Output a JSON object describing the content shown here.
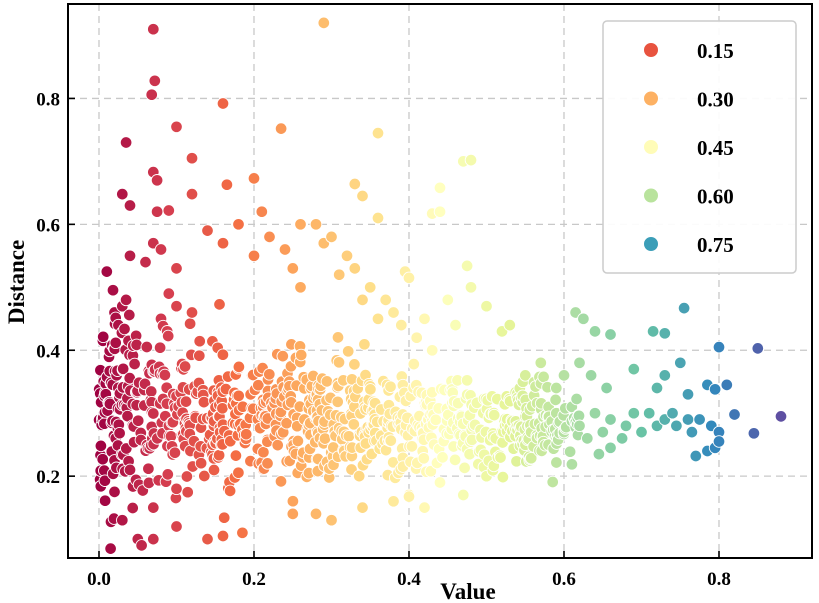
{
  "chart_data": {
    "type": "scatter",
    "title": "",
    "xlabel": "Value",
    "ylabel": "Distance",
    "xlim": [
      -0.04,
      0.92
    ],
    "ylim": [
      0.07,
      0.95
    ],
    "xticks": [
      0.0,
      0.2,
      0.4,
      0.6,
      0.8
    ],
    "xtick_labels": [
      "0.0",
      "0.2",
      "0.4",
      "0.6",
      "0.8"
    ],
    "yticks": [
      0.2,
      0.4,
      0.6,
      0.8
    ],
    "ytick_labels": [
      "0.2",
      "0.4",
      "0.6",
      "0.8"
    ],
    "grid": true,
    "colormap": "Spectral_r",
    "color_range": [
      0.0,
      0.88
    ],
    "colormap_stops": [
      "#9e0142",
      "#d53e4f",
      "#f46d43",
      "#fdae61",
      "#fee08b",
      "#ffffbf",
      "#e6f598",
      "#abdda4",
      "#66c2a5",
      "#3288bd",
      "#5e4fa2"
    ],
    "legend": {
      "position": "top-right",
      "entries": [
        {
          "label": "0.15",
          "color": "#e8533f"
        },
        {
          "label": "0.30",
          "color": "#fdb163"
        },
        {
          "label": "0.45",
          "color": "#fffcb8"
        },
        {
          "label": "0.60",
          "color": "#b9e39d"
        },
        {
          "label": "0.75",
          "color": "#3b9eb8"
        }
      ]
    },
    "points": [
      [
        0.07,
        0.91
      ],
      [
        0.29,
        0.92
      ],
      [
        0.072,
        0.828
      ],
      [
        0.068,
        0.806
      ],
      [
        0.16,
        0.792
      ],
      [
        0.1,
        0.755
      ],
      [
        0.235,
        0.752
      ],
      [
        0.035,
        0.73
      ],
      [
        0.36,
        0.745
      ],
      [
        0.12,
        0.705
      ],
      [
        0.07,
        0.683
      ],
      [
        0.075,
        0.67
      ],
      [
        0.165,
        0.663
      ],
      [
        0.2,
        0.673
      ],
      [
        0.33,
        0.664
      ],
      [
        0.44,
        0.658
      ],
      [
        0.47,
        0.7
      ],
      [
        0.48,
        0.702
      ],
      [
        0.03,
        0.648
      ],
      [
        0.12,
        0.648
      ],
      [
        0.34,
        0.645
      ],
      [
        0.04,
        0.63
      ],
      [
        0.09,
        0.622
      ],
      [
        0.075,
        0.62
      ],
      [
        0.43,
        0.617
      ],
      [
        0.44,
        0.62
      ],
      [
        0.36,
        0.61
      ],
      [
        0.01,
        0.525
      ],
      [
        0.005,
        0.415
      ],
      [
        0.475,
        0.534
      ],
      [
        0.395,
        0.525
      ],
      [
        0.4,
        0.515
      ],
      [
        0.615,
        0.46
      ],
      [
        0.625,
        0.45
      ],
      [
        0.66,
        0.425
      ],
      [
        0.64,
        0.43
      ],
      [
        0.715,
        0.43
      ],
      [
        0.73,
        0.427
      ],
      [
        0.755,
        0.467
      ],
      [
        0.8,
        0.405
      ],
      [
        0.85,
        0.403
      ],
      [
        0.69,
        0.37
      ],
      [
        0.75,
        0.38
      ],
      [
        0.81,
        0.345
      ],
      [
        0.785,
        0.345
      ],
      [
        0.795,
        0.338
      ],
      [
        0.72,
        0.34
      ],
      [
        0.76,
        0.33
      ],
      [
        0.73,
        0.36
      ],
      [
        0.88,
        0.295
      ],
      [
        0.845,
        0.268
      ],
      [
        0.82,
        0.298
      ],
      [
        0.79,
        0.28
      ],
      [
        0.8,
        0.27
      ],
      [
        0.775,
        0.29
      ],
      [
        0.8,
        0.255
      ],
      [
        0.795,
        0.245
      ],
      [
        0.785,
        0.24
      ],
      [
        0.77,
        0.232
      ],
      [
        0.76,
        0.29
      ],
      [
        0.765,
        0.27
      ],
      [
        0.74,
        0.3
      ],
      [
        0.745,
        0.28
      ],
      [
        0.73,
        0.29
      ],
      [
        0.72,
        0.28
      ],
      [
        0.71,
        0.3
      ],
      [
        0.7,
        0.27
      ],
      [
        0.69,
        0.3
      ],
      [
        0.68,
        0.28
      ],
      [
        0.675,
        0.26
      ],
      [
        0.66,
        0.29
      ],
      [
        0.65,
        0.27
      ],
      [
        0.64,
        0.3
      ],
      [
        0.63,
        0.26
      ],
      [
        0.62,
        0.28
      ],
      [
        0.61,
        0.31
      ],
      [
        0.6,
        0.27
      ],
      [
        0.59,
        0.3
      ],
      [
        0.58,
        0.25
      ],
      [
        0.655,
        0.34
      ],
      [
        0.635,
        0.36
      ],
      [
        0.62,
        0.38
      ],
      [
        0.6,
        0.36
      ],
      [
        0.59,
        0.34
      ],
      [
        0.57,
        0.38
      ],
      [
        0.55,
        0.36
      ],
      [
        0.66,
        0.245
      ],
      [
        0.645,
        0.235
      ],
      [
        0.07,
        0.15
      ],
      [
        0.1,
        0.18
      ],
      [
        0.02,
        0.225
      ],
      [
        0.04,
        0.21
      ],
      [
        0.025,
        0.44
      ],
      [
        0.03,
        0.47
      ],
      [
        0.02,
        0.46
      ],
      [
        0.035,
        0.48
      ],
      [
        0.08,
        0.45
      ],
      [
        0.09,
        0.49
      ],
      [
        0.1,
        0.47
      ],
      [
        0.12,
        0.46
      ],
      [
        0.06,
        0.54
      ],
      [
        0.08,
        0.56
      ],
      [
        0.1,
        0.53
      ],
      [
        0.04,
        0.55
      ],
      [
        0.14,
        0.59
      ],
      [
        0.16,
        0.57
      ],
      [
        0.18,
        0.6
      ],
      [
        0.07,
        0.57
      ],
      [
        0.02,
        0.175
      ],
      [
        0.03,
        0.13
      ],
      [
        0.05,
        0.1
      ],
      [
        0.07,
        0.1
      ],
      [
        0.1,
        0.12
      ],
      [
        0.14,
        0.1
      ],
      [
        0.16,
        0.105
      ],
      [
        0.185,
        0.11
      ],
      [
        0.015,
        0.085
      ],
      [
        0.055,
        0.09
      ],
      [
        0.22,
        0.58
      ],
      [
        0.24,
        0.56
      ],
      [
        0.25,
        0.53
      ],
      [
        0.28,
        0.6
      ],
      [
        0.3,
        0.58
      ],
      [
        0.26,
        0.5
      ],
      [
        0.2,
        0.55
      ],
      [
        0.32,
        0.55
      ],
      [
        0.33,
        0.53
      ],
      [
        0.35,
        0.5
      ],
      [
        0.37,
        0.48
      ],
      [
        0.38,
        0.46
      ],
      [
        0.42,
        0.45
      ],
      [
        0.45,
        0.48
      ],
      [
        0.46,
        0.44
      ],
      [
        0.5,
        0.47
      ],
      [
        0.52,
        0.43
      ],
      [
        0.53,
        0.44
      ],
      [
        0.48,
        0.5
      ],
      [
        0.4,
        0.17
      ],
      [
        0.47,
        0.17
      ],
      [
        0.42,
        0.15
      ],
      [
        0.38,
        0.16
      ],
      [
        0.28,
        0.14
      ],
      [
        0.3,
        0.13
      ],
      [
        0.25,
        0.14
      ],
      [
        0.34,
        0.15
      ],
      [
        0.44,
        0.19
      ],
      [
        0.5,
        0.2
      ],
      [
        0.21,
        0.62
      ],
      [
        0.26,
        0.6
      ],
      [
        0.29,
        0.57
      ],
      [
        0.31,
        0.52
      ],
      [
        0.34,
        0.48
      ],
      [
        0.36,
        0.45
      ],
      [
        0.39,
        0.44
      ],
      [
        0.41,
        0.42
      ],
      [
        0.43,
        0.4
      ]
    ],
    "cloud": {
      "count": 850,
      "x_range": [
        0.0,
        0.62
      ],
      "y_center_left": 0.3,
      "y_center_right": 0.28,
      "y_spread_left": 0.11,
      "y_spread_right": 0.045
    }
  }
}
